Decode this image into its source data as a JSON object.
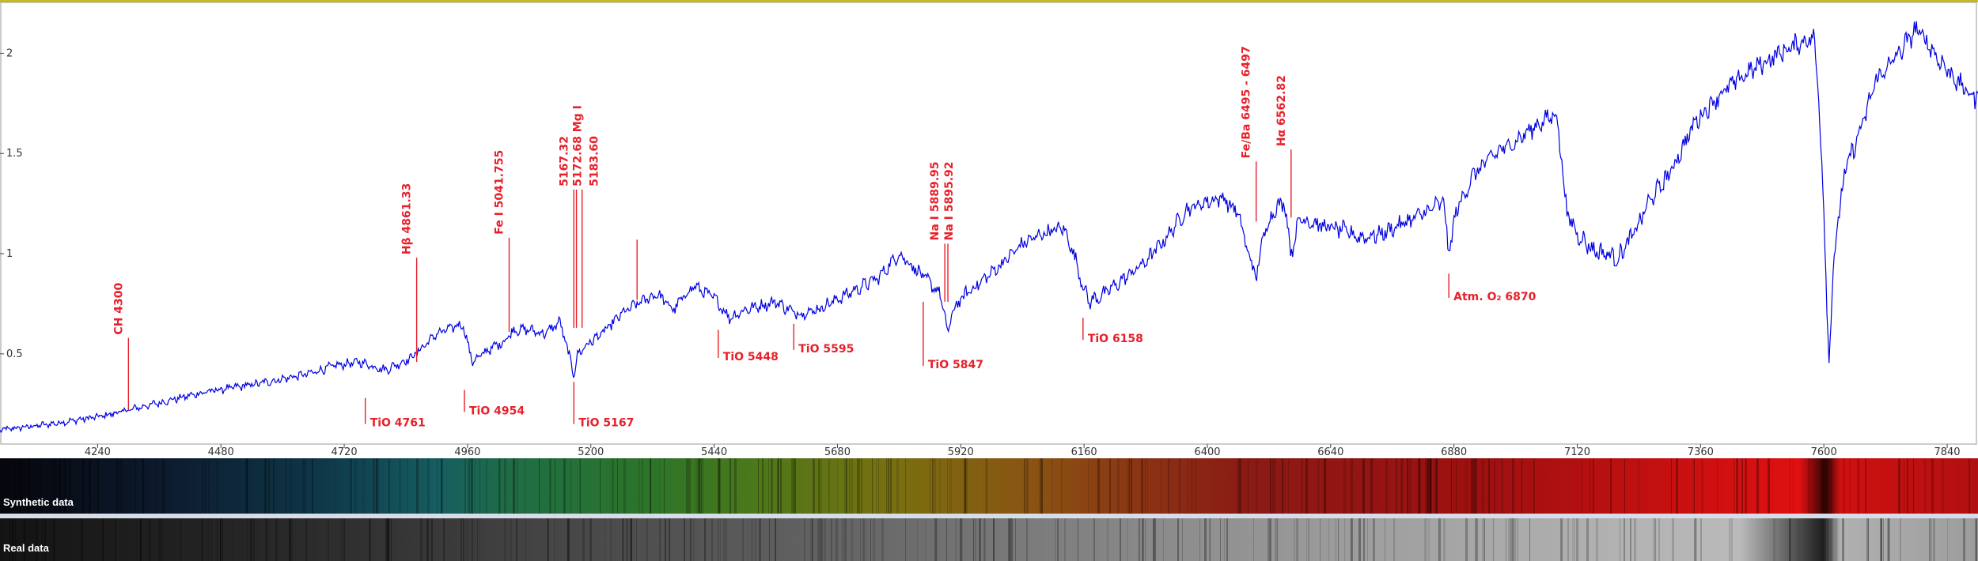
{
  "chart_data": {
    "type": "line",
    "title": "",
    "xlabel": "",
    "ylabel": "",
    "xlim": [
      4050,
      7900
    ],
    "ylim": [
      0.05,
      2.25
    ],
    "xticks": [
      4240,
      4480,
      4720,
      4960,
      5200,
      5440,
      5680,
      5920,
      6160,
      6400,
      6640,
      6880,
      7120,
      7360,
      7600,
      7840
    ],
    "yticks": [
      0.5,
      1,
      1.5,
      2
    ],
    "ytick_labels": [
      "0.5",
      "1",
      "1.5",
      "2"
    ],
    "line_color": "#0000e0",
    "series": [
      {
        "x": [
          4050,
          4150,
          4250,
          4350,
          4450,
          4550,
          4650,
          4700,
          4750,
          4800,
          4850,
          4900,
          4950,
          4970,
          5000,
          5030,
          5050,
          5080,
          5110,
          5140,
          5167,
          5175,
          5190,
          5230,
          5260,
          5290,
          5330,
          5360,
          5400,
          5440,
          5470,
          5500,
          5560,
          5600,
          5640,
          5700,
          5760,
          5800,
          5850,
          5880,
          5895,
          5905,
          5930,
          5960,
          6000,
          6040,
          6080,
          6120,
          6140,
          6158,
          6170,
          6200,
          6240,
          6280,
          6320,
          6360,
          6400,
          6430,
          6460,
          6480,
          6495,
          6510,
          6530,
          6550,
          6563,
          6580,
          6620,
          6660,
          6700,
          6740,
          6780,
          6820,
          6860,
          6870,
          6885,
          6920,
          6960,
          7000,
          7040,
          7080,
          7100,
          7120,
          7150,
          7200,
          7230,
          7260,
          7300,
          7350,
          7400,
          7450,
          7500,
          7560,
          7580,
          7590,
          7600,
          7610,
          7620,
          7640,
          7680,
          7700,
          7740,
          7760,
          7780,
          7800,
          7820,
          7840,
          7860,
          7880,
          7900
        ],
        "y": [
          0.12,
          0.15,
          0.19,
          0.25,
          0.31,
          0.35,
          0.4,
          0.44,
          0.46,
          0.42,
          0.48,
          0.6,
          0.65,
          0.46,
          0.52,
          0.56,
          0.62,
          0.62,
          0.6,
          0.66,
          0.4,
          0.5,
          0.54,
          0.62,
          0.7,
          0.75,
          0.8,
          0.72,
          0.84,
          0.78,
          0.68,
          0.72,
          0.76,
          0.7,
          0.72,
          0.8,
          0.88,
          1.0,
          0.88,
          0.8,
          0.6,
          0.72,
          0.8,
          0.86,
          0.95,
          1.05,
          1.1,
          1.13,
          1.0,
          0.84,
          0.76,
          0.8,
          0.88,
          0.96,
          1.08,
          1.22,
          1.26,
          1.28,
          1.2,
          1.0,
          0.88,
          1.1,
          1.22,
          1.26,
          1.0,
          1.18,
          1.14,
          1.12,
          1.08,
          1.1,
          1.15,
          1.2,
          1.26,
          1.0,
          1.22,
          1.4,
          1.5,
          1.56,
          1.64,
          1.7,
          1.2,
          1.1,
          1.02,
          0.98,
          1.1,
          1.26,
          1.4,
          1.66,
          1.8,
          1.9,
          1.98,
          2.06,
          2.08,
          1.8,
          1.2,
          0.46,
          1.0,
          1.4,
          1.68,
          1.86,
          1.98,
          2.05,
          2.12,
          2.06,
          1.98,
          1.92,
          1.86,
          1.8,
          1.78
        ]
      }
    ],
    "annotations": [
      {
        "text": "CH  4300",
        "x": 4300,
        "y_tip": 0.58,
        "y_end": 0.22,
        "dir": "up"
      },
      {
        "text": "Hβ 4861.33",
        "x": 4861,
        "y_tip": 0.98,
        "y_end": 0.46,
        "dir": "up"
      },
      {
        "text": "Fe I  5041.755",
        "x": 5041,
        "y_tip": 1.08,
        "y_end": 0.61,
        "dir": "up"
      },
      {
        "text": "5167.32",
        "x": 5167,
        "y_tip": 1.32,
        "y_end": 0.63,
        "dir": "up",
        "row": 0
      },
      {
        "text": "5172.68  Mg I",
        "x": 5172,
        "y_tip": 1.32,
        "y_end": 0.63,
        "dir": "up",
        "row": 1
      },
      {
        "text": "5183.60",
        "x": 5183,
        "y_tip": 1.32,
        "y_end": 0.63,
        "dir": "up",
        "row": 2
      },
      {
        "text": "Na I  5889.95",
        "x": 5889,
        "y_tip": 1.05,
        "y_end": 0.76,
        "dir": "up",
        "row": 0
      },
      {
        "text": "Na I  5895.92",
        "x": 5895,
        "y_tip": 1.05,
        "y_end": 0.76,
        "dir": "up",
        "row": 1
      },
      {
        "text": "Fe/Ba 6495 - 6497",
        "x": 6495,
        "y_tip": 1.46,
        "y_end": 1.16,
        "dir": "up"
      },
      {
        "text": "Hα 6562.82",
        "x": 6563,
        "y_tip": 1.52,
        "y_end": 1.18,
        "dir": "up"
      },
      {
        "text": "TiO 4761",
        "x": 4761,
        "y_tip": 0.15,
        "y_end": 0.28,
        "dir": "down"
      },
      {
        "text": "TiO 4954",
        "x": 4954,
        "y_tip": 0.21,
        "y_end": 0.32,
        "dir": "down"
      },
      {
        "text": "TiO 5167",
        "x": 5167,
        "y_tip": 0.15,
        "y_end": 0.36,
        "dir": "down"
      },
      {
        "text": "TiO 5448",
        "x": 5448,
        "y_tip": 0.48,
        "y_end": 0.62,
        "dir": "down"
      },
      {
        "text": "TiO 5595",
        "x": 5595,
        "y_tip": 0.52,
        "y_end": 0.65,
        "dir": "down"
      },
      {
        "text": "TiO 5847",
        "x": 5847,
        "y_tip": 0.44,
        "y_end": 0.76,
        "dir": "down"
      },
      {
        "text": "TiO 6158",
        "x": 6158,
        "y_tip": 0.57,
        "y_end": 0.68,
        "dir": "down"
      },
      {
        "text": "Atm. O₂ 6870",
        "x": 6870,
        "y_tip": 0.78,
        "y_end": 0.9,
        "dir": "down"
      }
    ],
    "extra_marker": {
      "x": 5290,
      "y_top": 1.07,
      "y_bottom": 0.77
    },
    "grid": false,
    "legend": "none"
  },
  "strips": {
    "synthetic_label": "Synthetic data",
    "real_label": "Real data"
  }
}
